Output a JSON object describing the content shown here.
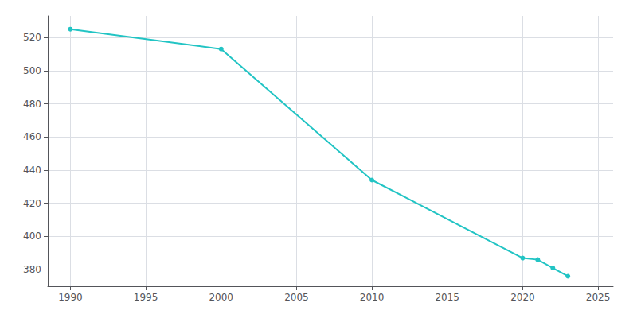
{
  "chart_data": {
    "type": "line",
    "x": [
      1990,
      2000,
      2010,
      2020,
      2021,
      2022,
      2023
    ],
    "values": [
      525,
      513,
      434,
      387,
      386,
      381,
      376
    ],
    "color": "#22c4c4",
    "marker": "circle",
    "xlim": [
      1988.5,
      2026
    ],
    "xticks": [
      1990,
      1995,
      2000,
      2005,
      2010,
      2015,
      2020,
      2025
    ],
    "ylim": [
      370,
      533
    ],
    "yticks": [
      380,
      400,
      420,
      440,
      460,
      480,
      500,
      520
    ],
    "grid": true
  }
}
